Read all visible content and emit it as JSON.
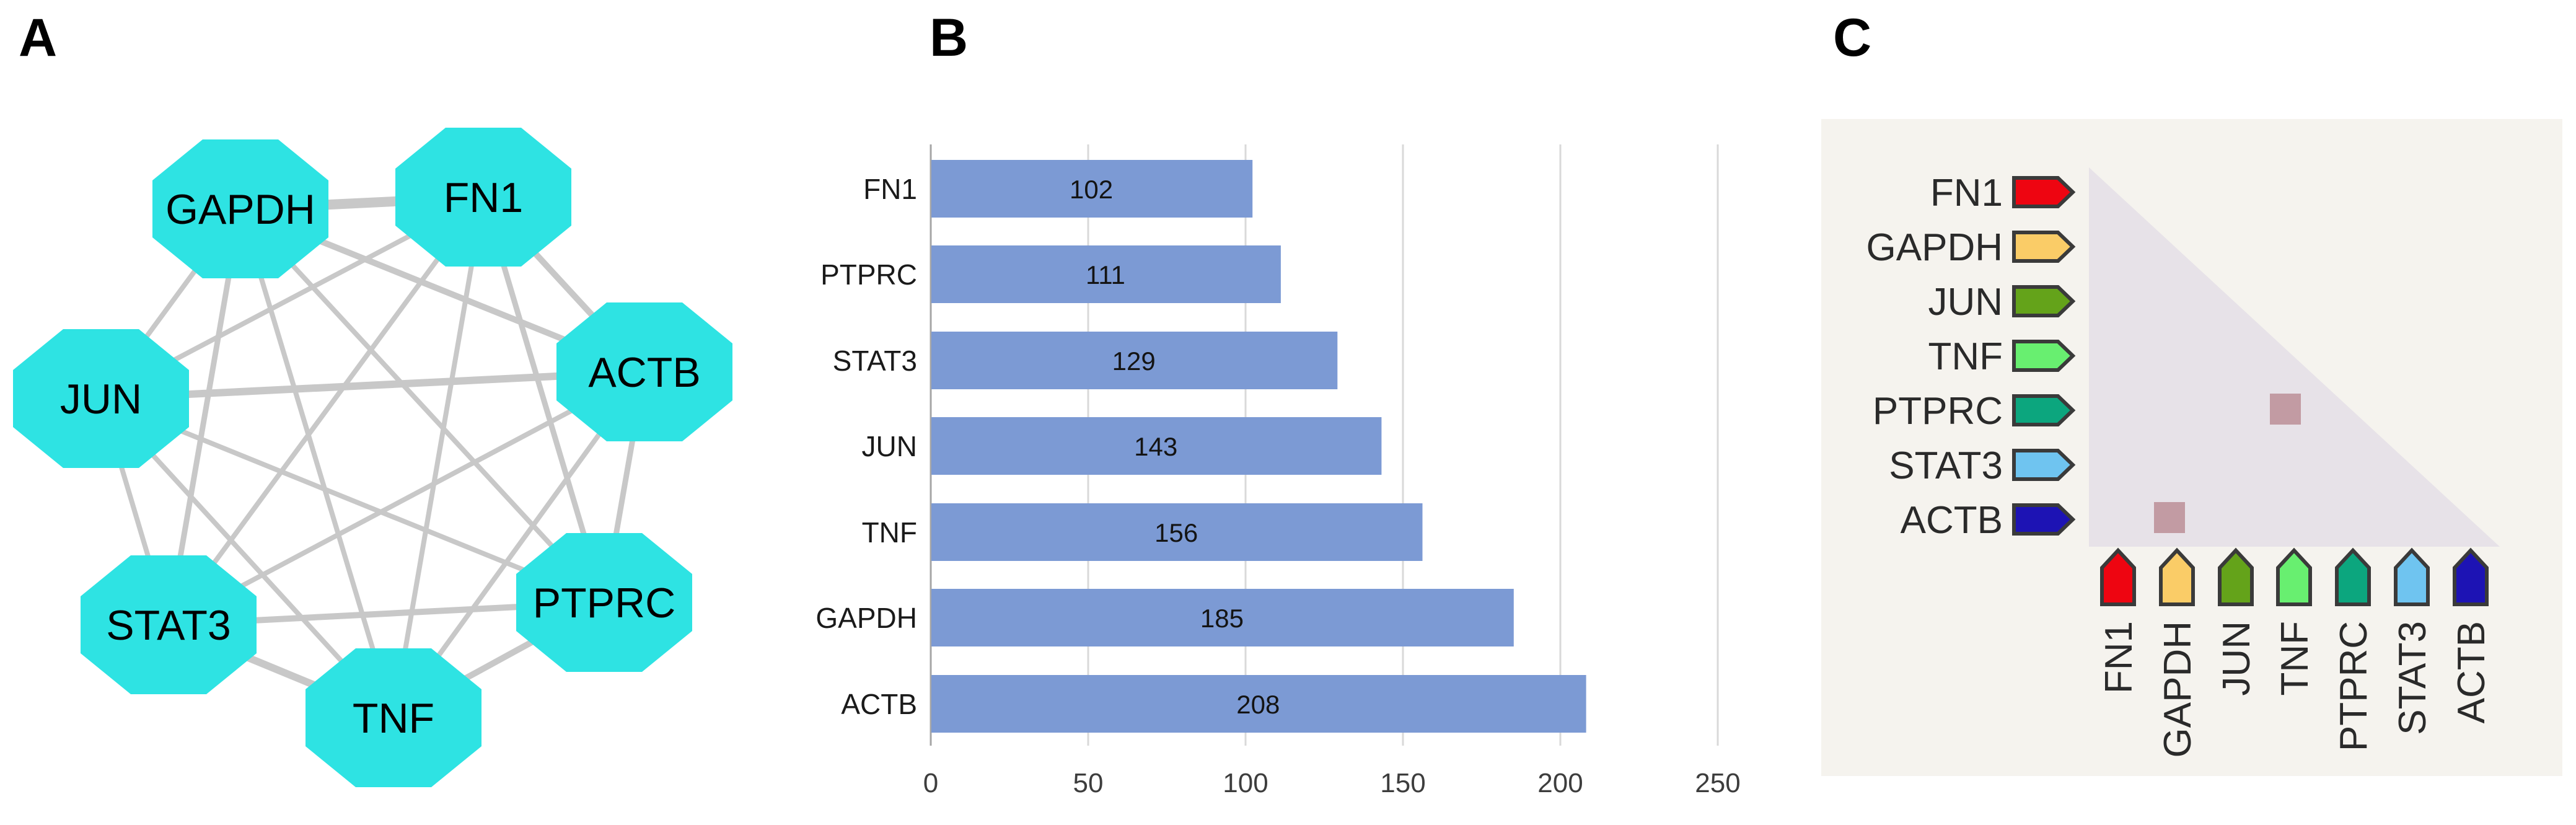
{
  "figure": {
    "panel_a_label": "A",
    "panel_b_label": "B",
    "panel_c_label": "C"
  },
  "network": {
    "node_shape": "octagon",
    "node_color": "#2EE3E3",
    "edge_color": "#C8C8C8",
    "nodes": [
      {
        "label": "GAPDH"
      },
      {
        "label": "FN1"
      },
      {
        "label": "ACTB"
      },
      {
        "label": "PTPRC"
      },
      {
        "label": "TNF"
      },
      {
        "label": "STAT3"
      },
      {
        "label": "JUN"
      }
    ],
    "edges": [
      [
        "GAPDH",
        "FN1"
      ],
      [
        "GAPDH",
        "ACTB"
      ],
      [
        "GAPDH",
        "PTPRC"
      ],
      [
        "GAPDH",
        "TNF"
      ],
      [
        "GAPDH",
        "STAT3"
      ],
      [
        "GAPDH",
        "JUN"
      ],
      [
        "FN1",
        "ACTB"
      ],
      [
        "FN1",
        "PTPRC"
      ],
      [
        "FN1",
        "TNF"
      ],
      [
        "FN1",
        "STAT3"
      ],
      [
        "FN1",
        "JUN"
      ],
      [
        "ACTB",
        "PTPRC"
      ],
      [
        "ACTB",
        "TNF"
      ],
      [
        "ACTB",
        "STAT3"
      ],
      [
        "ACTB",
        "JUN"
      ],
      [
        "PTPRC",
        "TNF"
      ],
      [
        "PTPRC",
        "STAT3"
      ],
      [
        "PTPRC",
        "JUN"
      ],
      [
        "TNF",
        "STAT3"
      ],
      [
        "TNF",
        "JUN"
      ],
      [
        "STAT3",
        "JUN"
      ]
    ]
  },
  "chart_data": {
    "type": "bar",
    "orientation": "horizontal",
    "categories": [
      "FN1",
      "PTPRC",
      "STAT3",
      "JUN",
      "TNF",
      "GAPDH",
      "ACTB"
    ],
    "values": [
      102,
      111,
      129,
      143,
      156,
      185,
      208
    ],
    "xlim": [
      0,
      250
    ],
    "xticks": [
      0,
      50,
      100,
      150,
      200,
      250
    ],
    "xlabel": "",
    "ylabel": "",
    "bar_color": "#7C9AD4",
    "grid": true,
    "gridline_color": "#D9D9D9",
    "axis_line_color": "#A6A6A6",
    "value_labels_inside_bars": true,
    "legend": false
  },
  "matrix": {
    "background": "#F5F3EE",
    "triangle_color": "#E7E2E8",
    "highlight_color": "#C29BA3",
    "marker_outline": "#3A3A3A",
    "genes": [
      {
        "label": "FN1",
        "color": "#EE0511"
      },
      {
        "label": "GAPDH",
        "color": "#FACC67"
      },
      {
        "label": "JUN",
        "color": "#64A31A"
      },
      {
        "label": "TNF",
        "color": "#68EF70"
      },
      {
        "label": "PTPRC",
        "color": "#0CA67E"
      },
      {
        "label": "STAT3",
        "color": "#6FC4F0"
      },
      {
        "label": "ACTB",
        "color": "#1D13B4"
      }
    ],
    "highlight_cells": [
      {
        "row": "PTPRC",
        "col": "TNF"
      },
      {
        "row": "ACTB",
        "col": "GAPDH"
      }
    ]
  }
}
